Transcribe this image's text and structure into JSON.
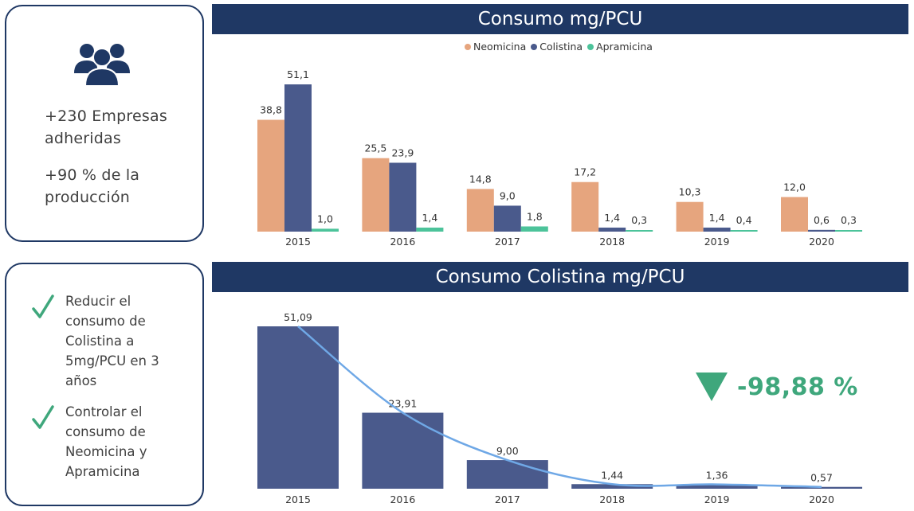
{
  "left_panel": {
    "people_icon": "users-group-icon",
    "stat_companies": [
      "+230 Empresas",
      "adheridas"
    ],
    "stat_production": [
      "+90 % de la",
      "producción"
    ],
    "goals": [
      {
        "icon": "checkmark-icon",
        "lines": [
          "Reducir el",
          "consumo de",
          "Colistina a",
          "5mg/PCU en 3",
          "años"
        ]
      },
      {
        "icon": "checkmark-icon",
        "lines": [
          "Controlar el",
          "consumo de",
          "Neomicina y",
          "Apramicina"
        ]
      }
    ]
  },
  "colors": {
    "navy": "#1f3864",
    "neomicina": "#e6a57e",
    "colistina": "#4a5a8c",
    "apramicina": "#4cc39a",
    "trend_line": "#6fa8e6",
    "kpi_green": "#3fa77c"
  },
  "kpi": {
    "value": "-98,88 %",
    "icon": "triangle-down-icon"
  },
  "chart_data": [
    {
      "type": "bar",
      "title": "Consumo mg/PCU",
      "categories": [
        "2015",
        "2016",
        "2017",
        "2018",
        "2019",
        "2020"
      ],
      "series": [
        {
          "name": "Neomicina",
          "values": [
            38.8,
            25.5,
            14.8,
            17.2,
            10.3,
            12.0
          ],
          "labels": [
            "38,8",
            "25,5",
            "14,8",
            "17,2",
            "10,3",
            "12,0"
          ]
        },
        {
          "name": "Colistina",
          "values": [
            51.1,
            23.9,
            9.0,
            1.4,
            1.4,
            0.6
          ],
          "labels": [
            "51,1",
            "23,9",
            "9,0",
            "1,4",
            "1,4",
            "0,6"
          ]
        },
        {
          "name": "Apramicina",
          "values": [
            1.0,
            1.4,
            1.8,
            0.3,
            0.4,
            0.3
          ],
          "labels": [
            "1,0",
            "1,4",
            "1,8",
            "0,3",
            "0,4",
            "0,3"
          ]
        }
      ],
      "legend": "top-center",
      "ylim": [
        0,
        51.1
      ],
      "grid": false
    },
    {
      "type": "bar",
      "title": "Consumo Colistina mg/PCU",
      "categories": [
        "2015",
        "2016",
        "2017",
        "2018",
        "2019",
        "2020"
      ],
      "values": [
        51.09,
        23.91,
        9.0,
        1.44,
        1.36,
        0.57
      ],
      "labels": [
        "51,09",
        "23,91",
        "9,00",
        "1,44",
        "1,36",
        "0,57"
      ],
      "trend_line": "smooth",
      "ylim": [
        0,
        51.09
      ],
      "grid": false
    }
  ]
}
